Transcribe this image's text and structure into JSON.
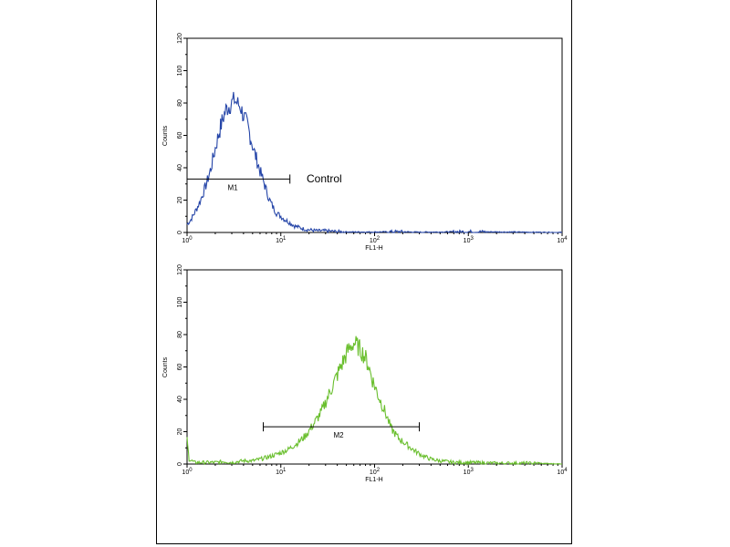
{
  "chart_data": [
    {
      "type": "line",
      "xlabel": "FL1-H",
      "ylabel": "Counts",
      "xscale": "log",
      "xlim": [
        1,
        10000
      ],
      "ylim": [
        0,
        120
      ],
      "yticks": [
        "0",
        "20",
        "40",
        "60",
        "80",
        "100",
        "120"
      ],
      "xticks": [
        {
          "base": "10",
          "exp": "0"
        },
        {
          "base": "10",
          "exp": "1"
        },
        {
          "base": "10",
          "exp": "2"
        },
        {
          "base": "10",
          "exp": "3"
        },
        {
          "base": "10",
          "exp": "4"
        }
      ],
      "color": "#2545a8",
      "series": [
        {
          "x": [
            1.0,
            1.1,
            1.2,
            1.35,
            1.5,
            1.65,
            1.8,
            2.0,
            2.2,
            2.4,
            2.6,
            2.8,
            3.0,
            3.2,
            3.4,
            3.7,
            4.0,
            4.4,
            4.8,
            5.2,
            5.6,
            6.0,
            6.5,
            7.0,
            7.6,
            8.2,
            9.0,
            10,
            11,
            12.5,
            14,
            16,
            18,
            21,
            25,
            30,
            40,
            60,
            100,
            180,
            300,
            1000,
            10000
          ],
          "y": [
            5,
            8,
            12,
            18,
            25,
            32,
            40,
            52,
            62,
            70,
            76,
            78,
            80,
            82,
            80,
            78,
            72,
            66,
            58,
            50,
            44,
            38,
            32,
            26,
            20,
            16,
            12,
            10,
            8,
            6,
            4,
            3,
            2,
            1.5,
            1,
            1,
            0.5,
            0.3,
            0.3,
            0.5,
            0.2,
            0.5,
            0
          ]
        }
      ],
      "marker": {
        "label": "M1",
        "x_start": 1.0,
        "x_end": 12.5,
        "y": 33
      },
      "annotation": "Control"
    },
    {
      "type": "line",
      "xlabel": "FL1-H",
      "ylabel": "Counts",
      "xscale": "log",
      "xlim": [
        1,
        10000
      ],
      "ylim": [
        0,
        120
      ],
      "yticks": [
        "0",
        "20",
        "40",
        "60",
        "80",
        "100",
        "120"
      ],
      "xticks": [
        {
          "base": "10",
          "exp": "0"
        },
        {
          "base": "10",
          "exp": "1"
        },
        {
          "base": "10",
          "exp": "2"
        },
        {
          "base": "10",
          "exp": "3"
        },
        {
          "base": "10",
          "exp": "4"
        }
      ],
      "color": "#6abf2e",
      "series": [
        {
          "x": [
            1.0,
            1.05,
            1.2,
            1.5,
            2.0,
            2.5,
            3.0,
            4.0,
            5.0,
            6.0,
            7.0,
            8.0,
            10,
            12,
            15,
            18,
            22,
            27,
            32,
            38,
            45,
            52,
            60,
            68,
            76,
            85,
            95,
            110,
            130,
            150,
            180,
            220,
            270,
            330,
            400,
            500,
            700,
            1000,
            2000,
            5000,
            10000
          ],
          "y": [
            15,
            3,
            1,
            1,
            1,
            1.5,
            1,
            2,
            2,
            3,
            4,
            5,
            7,
            9,
            13,
            17,
            24,
            32,
            42,
            52,
            62,
            70,
            75,
            72,
            68,
            62,
            52,
            42,
            32,
            22,
            16,
            12,
            8,
            5,
            3,
            2,
            1,
            1,
            0.5,
            0.5,
            0
          ]
        }
      ],
      "marker": {
        "label": "M2",
        "x_start": 6.5,
        "x_end": 300,
        "y": 23
      }
    }
  ]
}
